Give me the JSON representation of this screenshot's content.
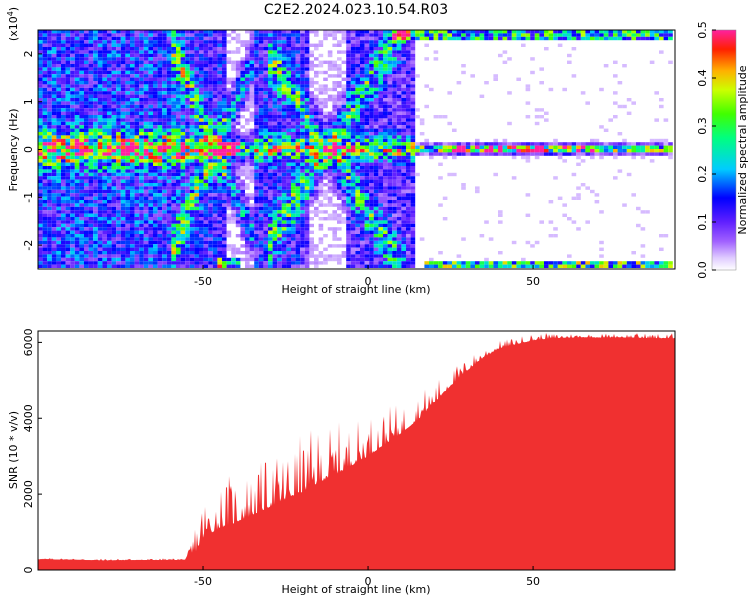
{
  "title": "C2E2.2024.023.10.54.R03",
  "chart_data": [
    {
      "type": "heatmap",
      "xlabel": "Height of straight line (km)",
      "ylabel": "Frequency (Hz)",
      "y_multiplier": "(x10",
      "y_multiplier_exp": "4",
      "y_multiplier_close": ")",
      "xlim": [
        -100,
        93
      ],
      "ylim": [
        -2.5,
        2.5
      ],
      "x_ticks": [
        "-50",
        "0",
        "50"
      ],
      "x_tick_values": [
        -50,
        0,
        50
      ],
      "y_ticks": [
        "2",
        "1",
        "0",
        "-1",
        "-2"
      ],
      "y_tick_values": [
        2,
        1,
        0,
        -1,
        -2
      ],
      "colorbar": {
        "label": "Normalized spectral amplitude",
        "range": [
          0,
          0.5
        ],
        "ticks": [
          "0.0",
          "0.1",
          "0.2",
          "0.3",
          "0.4",
          "0.5"
        ],
        "tick_values": [
          0,
          0.1,
          0.2,
          0.3,
          0.4,
          0.5
        ]
      },
      "features": [
        {
          "name": "carrier line",
          "y_center": 0.0,
          "x_range": [
            -100,
            93
          ]
        },
        {
          "name": "diagonal band",
          "x_range": [
            -58,
            -38
          ]
        },
        {
          "name": "diagonal band",
          "x_range": [
            -25,
            5
          ]
        },
        {
          "name": "edge line",
          "y_center": 2.45,
          "x_range": [
            10,
            93
          ]
        },
        {
          "name": "edge line",
          "y_center": -2.45,
          "x_range": [
            20,
            93
          ]
        }
      ]
    },
    {
      "type": "area",
      "xlabel": "Height of straight line (km)",
      "ylabel": "SNR (10 * v/v)",
      "xlim": [
        -100,
        93
      ],
      "ylim": [
        0,
        6300
      ],
      "x_ticks": [
        "-50",
        "0",
        "50"
      ],
      "x_tick_values": [
        -50,
        0,
        50
      ],
      "y_ticks": [
        "6000",
        "4000",
        "2000",
        "0"
      ],
      "y_tick_values": [
        6000,
        4000,
        2000,
        0
      ],
      "fill_color": "#f03030",
      "x": [
        -100,
        -90,
        -80,
        -70,
        -60,
        -55,
        -52,
        -50,
        -45,
        -40,
        -35,
        -30,
        -25,
        -20,
        -15,
        -10,
        -5,
        0,
        5,
        10,
        15,
        20,
        25,
        30,
        35,
        40,
        45,
        50,
        55,
        60,
        65,
        70,
        75,
        80,
        85,
        93
      ],
      "y": [
        280,
        270,
        250,
        260,
        260,
        270,
        500,
        850,
        1100,
        1250,
        1450,
        1650,
        1850,
        2050,
        2300,
        2500,
        2750,
        3000,
        3300,
        3600,
        3950,
        4400,
        4850,
        5250,
        5600,
        5850,
        5950,
        6050,
        6100,
        6120,
        6130,
        6120,
        6130,
        6120,
        6110,
        6100
      ],
      "spike_max": [
        320,
        310,
        300,
        300,
        310,
        320,
        1600,
        2100,
        2400,
        2700,
        2700,
        3000,
        3300,
        3600,
        3800,
        3900,
        3950,
        4150,
        4300,
        4400,
        4700,
        5000,
        5300,
        5600,
        5900,
        6050,
        6150,
        6250,
        6250,
        6250,
        6250,
        6250,
        6250,
        6250,
        6250,
        6250
      ]
    }
  ]
}
